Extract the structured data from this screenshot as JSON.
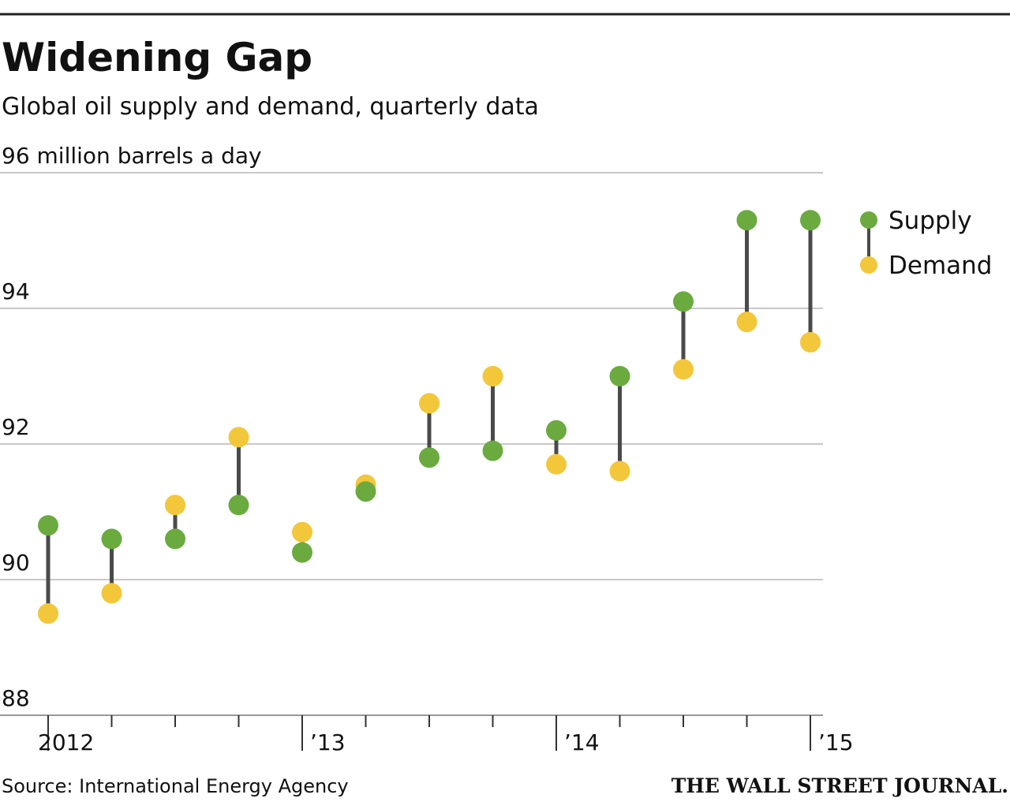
{
  "chart_data": {
    "type": "dumbbell",
    "title": "Widening Gap",
    "subtitle": "Global oil supply and demand, quarterly data",
    "source": "Source: International Energy Agency",
    "publisher": "THE WALL STREET JOURNAL.",
    "categories": [
      "2012",
      null,
      null,
      null,
      "’13",
      null,
      null,
      null,
      "’14",
      null,
      null,
      null,
      "’15"
    ],
    "series": [
      {
        "name": "Supply",
        "color": "#6aaa3f",
        "values": [
          90.8,
          90.6,
          90.6,
          91.1,
          90.4,
          91.3,
          91.8,
          91.9,
          92.2,
          93.0,
          94.1,
          95.3,
          95.3
        ]
      },
      {
        "name": "Demand",
        "color": "#f2c73a",
        "values": [
          89.5,
          89.8,
          91.1,
          92.1,
          90.7,
          91.4,
          92.6,
          93.0,
          91.7,
          91.6,
          93.1,
          93.8,
          93.5
        ]
      }
    ],
    "ylim": [
      88,
      96
    ],
    "yticks": [
      88,
      90,
      92,
      94,
      {
        "value": 96,
        "label": "96 million barrels a day"
      }
    ],
    "grid": true,
    "stem_color": "#4a4a4a"
  }
}
